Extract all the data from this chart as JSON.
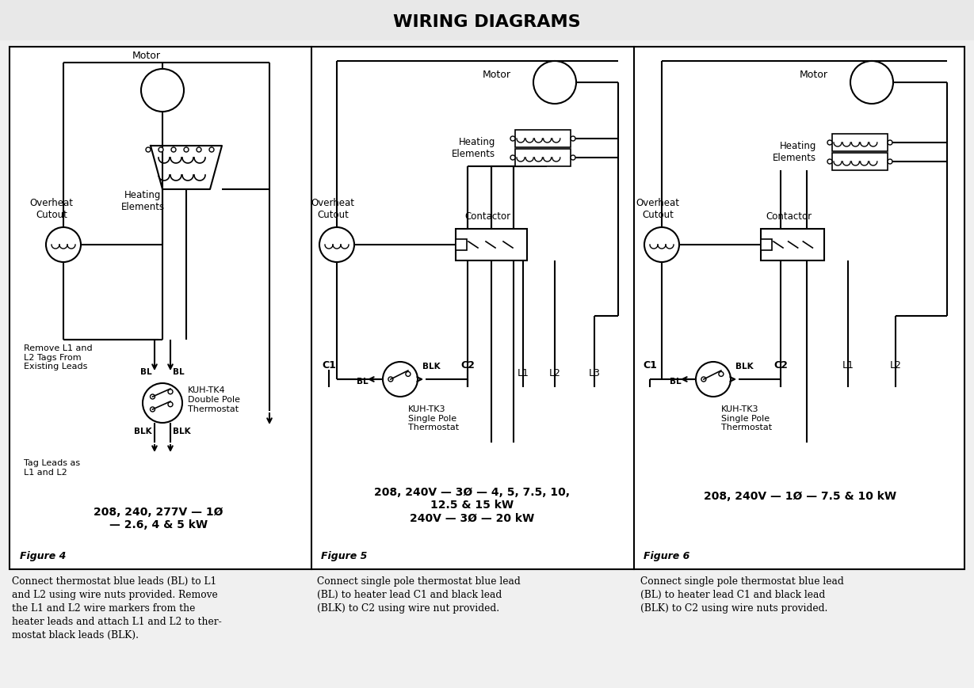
{
  "title": "WIRING DIAGRAMS",
  "title_bg": "#e8e8e8",
  "bg_color": "#f0f0f0",
  "panel_bg": "#ffffff",
  "border_color": "#000000",
  "fig4_label": "Figure 4",
  "fig5_label": "Figure 5",
  "fig6_label": "Figure 6",
  "fig4_spec": "208, 240, 277V — 1Ø\n— 2.6, 4 & 5 kW",
  "fig5_spec": "208, 240V — 3Ø — 4, 5, 7.5, 10,\n12.5 & 15 kW\n240V — 3Ø — 20 kW",
  "fig6_spec": "208, 240V — 1Ø — 7.5 & 10 kW",
  "caption1": "Connect thermostat blue leads (BL) to L1\nand L2 using wire nuts provided. Remove\nthe L1 and L2 wire markers from the\nheater leads and attach L1 and L2 to ther-\nmostat black leads (BLK).",
  "caption2": "Connect single pole thermostat blue lead\n(BL) to heater lead C1 and black lead\n(BLK) to C2 using wire nut provided.",
  "caption3": "Connect single pole thermostat blue lead\n(BL) to heater lead C1 and black lead\n(BLK) to C2 using wire nuts provided."
}
